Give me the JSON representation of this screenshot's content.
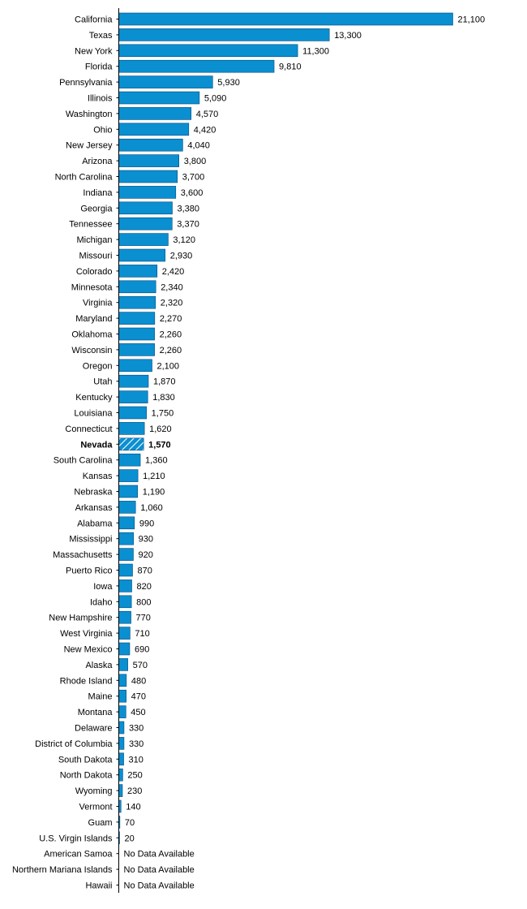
{
  "chart_data": {
    "type": "bar",
    "orientation": "horizontal",
    "grid": false,
    "bar_color": "#0a8fd1",
    "bar_stroke": "#004a7a",
    "highlight_category": "Nevada",
    "highlight_style": "hatched",
    "categories": [
      "California",
      "Texas",
      "New York",
      "Florida",
      "Pennsylvania",
      "Illinois",
      "Washington",
      "Ohio",
      "New Jersey",
      "Arizona",
      "North Carolina",
      "Indiana",
      "Georgia",
      "Tennessee",
      "Michigan",
      "Missouri",
      "Colorado",
      "Minnesota",
      "Virginia",
      "Maryland",
      "Oklahoma",
      "Wisconsin",
      "Oregon",
      "Utah",
      "Kentucky",
      "Louisiana",
      "Connecticut",
      "Nevada",
      "South Carolina",
      "Kansas",
      "Nebraska",
      "Arkansas",
      "Alabama",
      "Mississippi",
      "Massachusetts",
      "Puerto Rico",
      "Iowa",
      "Idaho",
      "New Hampshire",
      "West Virginia",
      "New Mexico",
      "Alaska",
      "Rhode Island",
      "Maine",
      "Montana",
      "Delaware",
      "District of Columbia",
      "South Dakota",
      "North Dakota",
      "Wyoming",
      "Vermont",
      "Guam",
      "U.S. Virgin Islands",
      "American Samoa",
      "Northern Mariana Islands",
      "Hawaii"
    ],
    "values": [
      21100,
      13300,
      11300,
      9810,
      5930,
      5090,
      4570,
      4420,
      4040,
      3800,
      3700,
      3600,
      3380,
      3370,
      3120,
      2930,
      2420,
      2340,
      2320,
      2270,
      2260,
      2260,
      2100,
      1870,
      1830,
      1750,
      1620,
      1570,
      1360,
      1210,
      1190,
      1060,
      990,
      930,
      920,
      870,
      820,
      800,
      770,
      710,
      690,
      570,
      480,
      470,
      450,
      330,
      330,
      310,
      250,
      230,
      140,
      70,
      20,
      null,
      null,
      null
    ],
    "value_labels": [
      "21,100",
      "13,300",
      "11,300",
      "9,810",
      "5,930",
      "5,090",
      "4,570",
      "4,420",
      "4,040",
      "3,800",
      "3,700",
      "3,600",
      "3,380",
      "3,370",
      "3,120",
      "2,930",
      "2,420",
      "2,340",
      "2,320",
      "2,270",
      "2,260",
      "2,260",
      "2,100",
      "1,870",
      "1,830",
      "1,750",
      "1,620",
      "1,570",
      "1,360",
      "1,210",
      "1,190",
      "1,060",
      "990",
      "930",
      "920",
      "870",
      "820",
      "800",
      "770",
      "710",
      "690",
      "570",
      "480",
      "470",
      "450",
      "330",
      "330",
      "310",
      "250",
      "230",
      "140",
      "70",
      "20",
      "No Data Available",
      "No Data Available",
      "No Data Available"
    ],
    "xlim": [
      0,
      21100
    ]
  }
}
